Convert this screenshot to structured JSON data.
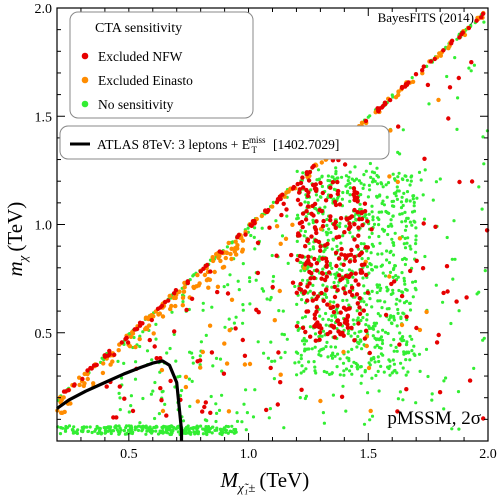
{
  "chart_data": {
    "type": "scatter",
    "title": "",
    "xlabel": "M",
    "xlabel_sub": "χ̃₁±",
    "xlabel_unit": "(TeV)",
    "ylabel": "m",
    "ylabel_sub": "χ",
    "ylabel_unit": "(TeV)",
    "xlim": [
      0.2,
      2.0
    ],
    "ylim": [
      0.0,
      2.0
    ],
    "x_ticks": [
      0.5,
      1.0,
      1.5,
      2.0
    ],
    "x_tick_labels": [
      "0.5",
      "1.0",
      "1.5",
      "2.0"
    ],
    "y_ticks": [
      0.5,
      1.0,
      1.5,
      2.0
    ],
    "y_tick_labels": [
      "0.5",
      "1.0",
      "1.5",
      "2.0"
    ],
    "grid": false,
    "legend_placement": "top-left",
    "legend_title": "CTA sensitivity",
    "series": [
      {
        "name": "Excluded NFW",
        "color": "#e60000",
        "marker_size": 2.2,
        "diagonal_band": {
          "x_range": [
            0.22,
            2.0
          ],
          "offset": [
            -0.02,
            0.0
          ]
        },
        "cluster": {
          "x_range": [
            1.2,
            1.5
          ],
          "y_range": [
            0.45,
            1.2
          ]
        },
        "scatter_region": "below-diagonal"
      },
      {
        "name": "Excluded Einasto",
        "color": "#ff8c00",
        "marker_size": 2.2,
        "diagonal_band": {
          "x_range": [
            0.2,
            2.0
          ],
          "offset": [
            -0.03,
            0.0
          ]
        },
        "low_band": {
          "x_range": [
            0.2,
            1.0
          ],
          "offset": [
            -0.1,
            -0.02
          ]
        }
      },
      {
        "name": "No sensitivity",
        "color": "#33ee33",
        "marker_size": 1.6,
        "diagonal_band": {
          "x_range": [
            0.2,
            2.0
          ],
          "offset": [
            -0.02,
            0.0
          ]
        },
        "cluster": {
          "x_range": [
            1.2,
            1.7
          ],
          "y_range": [
            0.3,
            1.25
          ]
        },
        "bottom_band": {
          "x_range": [
            0.2,
            0.95
          ],
          "y_range": [
            0.03,
            0.07
          ]
        },
        "scatter_region": "below-diagonal"
      }
    ],
    "contour": {
      "name": "ATLAS 8TeV: 3 leptons + E",
      "name_sup": "miss",
      "name_sub": "T",
      "name_ref": "[1402.7029]",
      "color": "#000000",
      "points": [
        [
          0.2,
          0.15
        ],
        [
          0.25,
          0.19
        ],
        [
          0.32,
          0.23
        ],
        [
          0.4,
          0.27
        ],
        [
          0.48,
          0.31
        ],
        [
          0.55,
          0.34
        ],
        [
          0.6,
          0.36
        ],
        [
          0.64,
          0.37
        ],
        [
          0.67,
          0.35
        ],
        [
          0.7,
          0.27
        ],
        [
          0.71,
          0.16
        ],
        [
          0.72,
          0.05
        ],
        [
          0.72,
          0.0
        ]
      ]
    },
    "annotations": {
      "watermark": "BayesFITS (2014)",
      "region": "pMSSM, 2σ"
    }
  }
}
